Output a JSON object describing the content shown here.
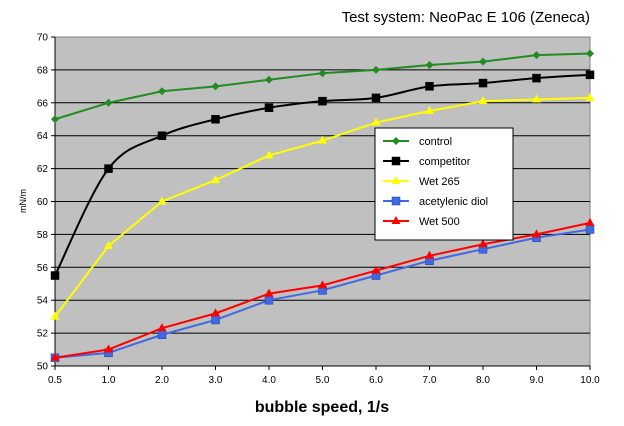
{
  "chart_data": {
    "type": "line",
    "title": "Test system: NeoPac E 106 (Zeneca)",
    "xlabel": "bubble speed, 1/s",
    "ylabel": "mN/m",
    "categories": [
      "0.5",
      "1.0",
      "2.0",
      "3.0",
      "4.0",
      "5.0",
      "6.0",
      "7.0",
      "8.0",
      "9.0",
      "10.0"
    ],
    "ylim": [
      50,
      70
    ],
    "yticks": [
      50,
      52,
      54,
      56,
      58,
      60,
      62,
      64,
      66,
      68,
      70
    ],
    "ytick_labels": [
      "50",
      "52",
      "54",
      "56",
      "58",
      "60",
      "62",
      "64",
      "66",
      "68",
      "70"
    ],
    "grid": true,
    "legend_position": "center-right",
    "plot_background": "#c0c0c0",
    "series": [
      {
        "name": "control",
        "color": "#228b22",
        "marker": "diamond",
        "smooth": false,
        "values": [
          65.0,
          66.0,
          66.7,
          67.0,
          67.4,
          67.8,
          68.0,
          68.3,
          68.5,
          68.9,
          69.0
        ]
      },
      {
        "name": "competitor",
        "color": "#000000",
        "marker": "square",
        "smooth": true,
        "values": [
          55.5,
          62.0,
          64.0,
          65.0,
          65.7,
          66.1,
          66.3,
          67.0,
          67.2,
          67.5,
          67.7
        ]
      },
      {
        "name": "Wet 265",
        "color": "#ffff00",
        "marker": "triangle",
        "smooth": false,
        "values": [
          53.0,
          57.3,
          60.0,
          61.3,
          62.8,
          63.7,
          64.8,
          65.5,
          66.1,
          66.2,
          66.3
        ]
      },
      {
        "name": "acetylenic diol",
        "color": "#4169e1",
        "marker": "square",
        "smooth": false,
        "values": [
          50.5,
          50.8,
          51.9,
          52.8,
          54.0,
          54.6,
          55.5,
          56.4,
          57.1,
          57.8,
          58.3
        ]
      },
      {
        "name": "Wet 500",
        "color": "#ff0000",
        "marker": "triangle",
        "smooth": false,
        "values": [
          50.5,
          51.0,
          52.3,
          53.2,
          54.4,
          54.9,
          55.8,
          56.7,
          57.4,
          58.0,
          58.7
        ]
      }
    ]
  }
}
